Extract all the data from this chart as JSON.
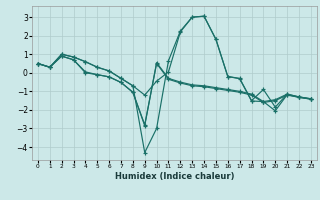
{
  "xlabel": "Humidex (Indice chaleur)",
  "bg_color": "#cce8e8",
  "grid_color": "#b0cccc",
  "line_color": "#1a7068",
  "xlim": [
    -0.5,
    23.5
  ],
  "ylim": [
    -4.7,
    3.6
  ],
  "xticks": [
    0,
    1,
    2,
    3,
    4,
    5,
    6,
    7,
    8,
    9,
    10,
    11,
    12,
    13,
    14,
    15,
    16,
    17,
    18,
    19,
    20,
    21,
    22,
    23
  ],
  "yticks": [
    -4,
    -3,
    -2,
    -1,
    0,
    1,
    2,
    3
  ],
  "series": [
    {
      "x": [
        0,
        1,
        2,
        3,
        4,
        5,
        6,
        7,
        8,
        9,
        10,
        11,
        12,
        13,
        14,
        15,
        16,
        17,
        18,
        19,
        20,
        21,
        22,
        23
      ],
      "y": [
        0.5,
        0.3,
        1.0,
        0.85,
        0.6,
        0.3,
        0.1,
        -0.3,
        -0.7,
        -4.3,
        -3.0,
        0.65,
        2.25,
        3.0,
        3.05,
        1.8,
        -0.2,
        -0.3,
        -1.5,
        -0.9,
        -1.85,
        -1.15,
        -1.3,
        -1.4
      ]
    },
    {
      "x": [
        0,
        1,
        2,
        3,
        4,
        5,
        6,
        7,
        8,
        9,
        10,
        11,
        12,
        13,
        14,
        15,
        16,
        17,
        18,
        19,
        20,
        21,
        22,
        23
      ],
      "y": [
        0.5,
        0.3,
        1.0,
        0.85,
        0.6,
        0.3,
        0.1,
        -0.3,
        -0.7,
        -1.2,
        -0.45,
        0.05,
        2.2,
        3.0,
        3.05,
        1.8,
        -0.2,
        -0.32,
        -1.52,
        -1.55,
        -2.05,
        -1.18,
        -1.32,
        -1.42
      ]
    },
    {
      "x": [
        0,
        1,
        2,
        3,
        4,
        5,
        6,
        7,
        8,
        9,
        10,
        11,
        12,
        13,
        14,
        15,
        16,
        17,
        18,
        19,
        20,
        21,
        22,
        23
      ],
      "y": [
        0.5,
        0.3,
        0.9,
        0.7,
        0.05,
        -0.1,
        -0.22,
        -0.52,
        -1.05,
        -2.8,
        0.5,
        -0.35,
        -0.55,
        -0.7,
        -0.75,
        -0.85,
        -0.95,
        -1.05,
        -1.2,
        -1.6,
        -1.5,
        -1.2,
        -1.32,
        -1.42
      ]
    },
    {
      "x": [
        0,
        1,
        2,
        3,
        4,
        5,
        6,
        7,
        8,
        9,
        10,
        11,
        12,
        13,
        14,
        15,
        16,
        17,
        18,
        19,
        20,
        21,
        22,
        23
      ],
      "y": [
        0.5,
        0.3,
        0.9,
        0.7,
        0.0,
        -0.1,
        -0.22,
        -0.52,
        -1.05,
        -2.85,
        0.55,
        -0.3,
        -0.5,
        -0.65,
        -0.7,
        -0.8,
        -0.9,
        -1.0,
        -1.15,
        -1.55,
        -1.45,
        -1.15,
        -1.3,
        -1.4
      ]
    }
  ]
}
